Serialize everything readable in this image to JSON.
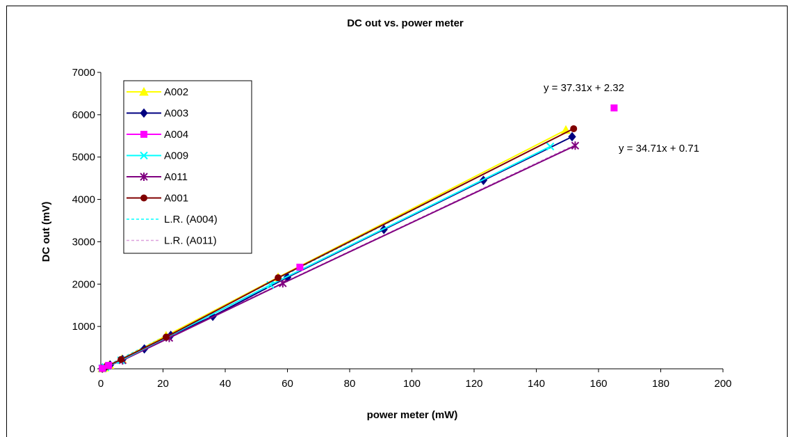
{
  "chart_data": {
    "type": "scatter",
    "title": "DC  out  vs.  power  meter",
    "xlabel": "power   meter   (mW)",
    "ylabel": "DC   out   (mV)",
    "xlim": [
      0,
      200
    ],
    "ylim": [
      0,
      7000
    ],
    "xticks": [
      0,
      20,
      40,
      60,
      80,
      100,
      120,
      140,
      160,
      180,
      200
    ],
    "yticks": [
      0,
      1000,
      2000,
      3000,
      4000,
      5000,
      6000,
      7000
    ],
    "grid": false,
    "legend_position": "top-left",
    "series": [
      {
        "name": "A002",
        "color": "#ffff00",
        "marker": "triangle",
        "line": true,
        "points": [
          [
            0.5,
            10
          ],
          [
            1.2,
            30
          ],
          [
            2.8,
            90
          ],
          [
            6.8,
            230
          ],
          [
            21,
            780
          ],
          [
            57,
            2160
          ],
          [
            149.5,
            5640
          ]
        ]
      },
      {
        "name": "A003",
        "color": "#000080",
        "marker": "diamond",
        "line": true,
        "points": [
          [
            0.5,
            12
          ],
          [
            1.5,
            40
          ],
          [
            3,
            90
          ],
          [
            7,
            220
          ],
          [
            14,
            470
          ],
          [
            22.5,
            790
          ],
          [
            36,
            1240
          ],
          [
            60,
            2160
          ],
          [
            91,
            3290
          ],
          [
            123,
            4450
          ],
          [
            151.5,
            5480
          ]
        ]
      },
      {
        "name": "A004",
        "color": "#ff00ff",
        "marker": "square",
        "line": false,
        "points": [
          [
            0.5,
            10
          ],
          [
            2.5,
            80
          ],
          [
            64,
            2400
          ],
          [
            165,
            6160
          ]
        ]
      },
      {
        "name": "A009",
        "color": "#00ffff",
        "marker": "x",
        "line": true,
        "points": [
          [
            0.5,
            10
          ],
          [
            1.5,
            40
          ],
          [
            6.5,
            200
          ],
          [
            54.5,
            1980
          ],
          [
            144.5,
            5250
          ]
        ]
      },
      {
        "name": "A011",
        "color": "#800080",
        "marker": "star",
        "line": true,
        "points": [
          [
            0.5,
            10
          ],
          [
            1.5,
            40
          ],
          [
            7,
            200
          ],
          [
            22,
            730
          ],
          [
            58.5,
            2020
          ],
          [
            152.5,
            5270
          ]
        ]
      },
      {
        "name": "A001",
        "color": "#800000",
        "marker": "circle",
        "line": true,
        "points": [
          [
            0.5,
            10
          ],
          [
            2,
            60
          ],
          [
            6.5,
            220
          ],
          [
            21,
            750
          ],
          [
            57,
            2150
          ],
          [
            152,
            5670
          ]
        ]
      },
      {
        "name": "L.R. (A004)",
        "color": "#00ffff",
        "marker": "none",
        "line": true,
        "dash": true,
        "slope": 37.31,
        "intercept": 2.32,
        "x_range": [
          0,
          152
        ]
      },
      {
        "name": "L.R. (A011)",
        "color": "#dda0dd",
        "marker": "none",
        "line": true,
        "dash": true,
        "slope": 34.71,
        "intercept": 0.71,
        "x_range": [
          0,
          152
        ]
      }
    ],
    "annotations": [
      {
        "text": "y = 37.31x + 2.32"
      },
      {
        "text": "y = 34.71x + 0.71"
      }
    ]
  }
}
